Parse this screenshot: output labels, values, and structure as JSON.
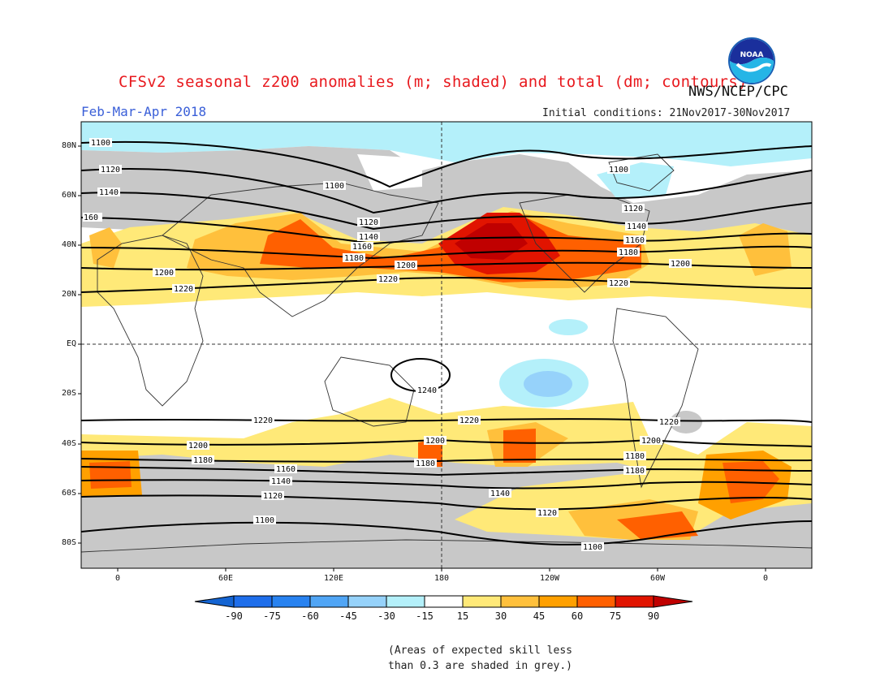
{
  "title": "CFSv2 seasonal z200 anomalies (m; shaded) and total (dm; contours)",
  "agency": "NWS/NCEP/CPC",
  "season": "Feb-Mar-Apr 2018",
  "initial_conditions": "Initial conditions: 21Nov2017-30Nov2017",
  "logo_text": "NOAA",
  "lat_labels": [
    "80N",
    "60N",
    "40N",
    "20N",
    "EQ",
    "20S",
    "40S",
    "60S",
    "80S"
  ],
  "lon_labels": [
    "0",
    "60E",
    "120E",
    "180",
    "120W",
    "60W",
    "0"
  ],
  "contour_labels": [
    "1100",
    "1120",
    "1140",
    "1160",
    "1180",
    "1200",
    "1220",
    "1240"
  ],
  "colorbar": {
    "values": [
      "-90",
      "-75",
      "-60",
      "-45",
      "-30",
      "-15",
      "15",
      "30",
      "45",
      "60",
      "75",
      "90"
    ],
    "colors": [
      "#1464d2",
      "#1e6eeb",
      "#2882f0",
      "#50a5f5",
      "#96d2fa",
      "#b4f0fa",
      "#ffffff",
      "#ffe978",
      "#ffc03c",
      "#ffa000",
      "#ff6000",
      "#e11400",
      "#c00000"
    ]
  },
  "grey_color": "#c8c8c8",
  "note": "(Areas of expected skill less\nthan 0.3 are shaded in grey.)"
}
